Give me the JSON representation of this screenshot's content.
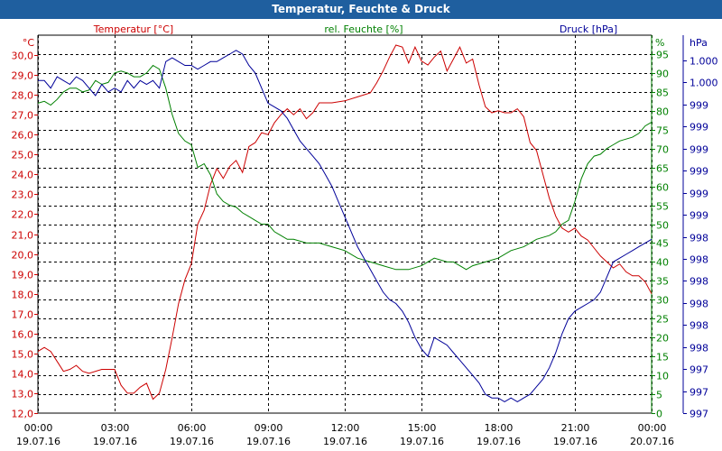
{
  "window": {
    "title": "Temperatur, Feuchte & Druck"
  },
  "colors": {
    "temperature": "#cc0000",
    "humidity": "#008000",
    "pressure": "#000099",
    "titlebar": "#1f5f9f",
    "grid": "#000000"
  },
  "chart_data": {
    "type": "line",
    "grid": true,
    "x_ticks": [
      {
        "time": "00:00",
        "date": "19.07.16"
      },
      {
        "time": "03:00",
        "date": "19.07.16"
      },
      {
        "time": "06:00",
        "date": "19.07.16"
      },
      {
        "time": "09:00",
        "date": "19.07.16"
      },
      {
        "time": "12:00",
        "date": "19.07.16"
      },
      {
        "time": "15:00",
        "date": "19.07.16"
      },
      {
        "time": "18:00",
        "date": "19.07.16"
      },
      {
        "time": "21:00",
        "date": "19.07.16"
      },
      {
        "time": "00:00",
        "date": "20.07.16"
      }
    ],
    "xlim_hours": [
      0,
      24
    ],
    "axes": {
      "temperature": {
        "label": "Temperatur [°C]",
        "unit": "°C",
        "ylim": [
          12.0,
          31.0
        ],
        "ticks": [
          "12,0",
          "13,0",
          "14,0",
          "15,0",
          "16,0",
          "17,0",
          "18,0",
          "19,0",
          "20,0",
          "21,0",
          "22,0",
          "23,0",
          "24,0",
          "25,0",
          "26,0",
          "27,0",
          "28,0",
          "29,0",
          "30,0"
        ]
      },
      "humidity": {
        "label": "rel. Feuchte [%]",
        "unit": "%",
        "ylim": [
          0,
          100
        ],
        "ticks": [
          "0",
          "5",
          "10",
          "15",
          "20",
          "25",
          "30",
          "35",
          "40",
          "45",
          "50",
          "55",
          "60",
          "65",
          "70",
          "75",
          "80",
          "85",
          "90",
          "95"
        ]
      },
      "pressure": {
        "label": "Druck [hPa]",
        "unit": "hPa",
        "ticks": [
          "997",
          "997",
          "997",
          "998",
          "998",
          "998",
          "998",
          "998",
          "998",
          "999",
          "999",
          "999",
          "999",
          "999",
          "999",
          "1.000",
          "1.000"
        ]
      }
    },
    "series": [
      {
        "name": "Temperatur [°C]",
        "axis": "temperature",
        "points": [
          [
            0,
            15.1
          ],
          [
            0.25,
            15.3
          ],
          [
            0.5,
            15.1
          ],
          [
            0.75,
            14.6
          ],
          [
            1,
            14.1
          ],
          [
            1.25,
            14.2
          ],
          [
            1.5,
            14.4
          ],
          [
            1.75,
            14.1
          ],
          [
            2,
            14.0
          ],
          [
            2.5,
            14.2
          ],
          [
            3,
            14.2
          ],
          [
            3.25,
            13.4
          ],
          [
            3.5,
            13.0
          ],
          [
            3.75,
            13.0
          ],
          [
            4,
            13.3
          ],
          [
            4.25,
            13.5
          ],
          [
            4.5,
            12.7
          ],
          [
            4.75,
            13.0
          ],
          [
            5,
            14.2
          ],
          [
            5.25,
            15.8
          ],
          [
            5.5,
            17.5
          ],
          [
            5.75,
            18.7
          ],
          [
            6,
            19.5
          ],
          [
            6.25,
            21.5
          ],
          [
            6.5,
            22.2
          ],
          [
            6.75,
            23.5
          ],
          [
            7,
            24.3
          ],
          [
            7.25,
            23.8
          ],
          [
            7.5,
            24.4
          ],
          [
            7.75,
            24.7
          ],
          [
            8,
            24.1
          ],
          [
            8.25,
            25.4
          ],
          [
            8.5,
            25.6
          ],
          [
            8.75,
            26.1
          ],
          [
            9,
            26.0
          ],
          [
            9.25,
            26.6
          ],
          [
            9.5,
            27.0
          ],
          [
            9.75,
            27.3
          ],
          [
            10,
            27.0
          ],
          [
            10.25,
            27.3
          ],
          [
            10.5,
            26.8
          ],
          [
            10.75,
            27.1
          ],
          [
            11,
            27.6
          ],
          [
            11.5,
            27.6
          ],
          [
            12,
            27.7
          ],
          [
            12.5,
            27.9
          ],
          [
            13,
            28.1
          ],
          [
            13.25,
            28.6
          ],
          [
            13.5,
            29.2
          ],
          [
            13.75,
            29.9
          ],
          [
            14,
            30.5
          ],
          [
            14.25,
            30.4
          ],
          [
            14.5,
            29.6
          ],
          [
            14.75,
            30.4
          ],
          [
            15,
            29.7
          ],
          [
            15.25,
            29.5
          ],
          [
            15.5,
            29.9
          ],
          [
            15.75,
            30.2
          ],
          [
            16,
            29.2
          ],
          [
            16.25,
            29.8
          ],
          [
            16.5,
            30.4
          ],
          [
            16.75,
            29.6
          ],
          [
            17,
            29.8
          ],
          [
            17.25,
            28.5
          ],
          [
            17.5,
            27.4
          ],
          [
            17.75,
            27.1
          ],
          [
            18,
            27.2
          ],
          [
            18.25,
            27.1
          ],
          [
            18.5,
            27.1
          ],
          [
            18.75,
            27.3
          ],
          [
            19,
            26.9
          ],
          [
            19.25,
            25.6
          ],
          [
            19.5,
            25.2
          ],
          [
            19.75,
            24.0
          ],
          [
            20,
            22.8
          ],
          [
            20.25,
            21.9
          ],
          [
            20.5,
            21.3
          ],
          [
            20.75,
            21.1
          ],
          [
            21,
            21.3
          ],
          [
            21.25,
            20.9
          ],
          [
            21.5,
            20.7
          ],
          [
            21.75,
            20.3
          ],
          [
            22,
            19.9
          ],
          [
            22.25,
            19.6
          ],
          [
            22.5,
            19.3
          ],
          [
            22.75,
            19.5
          ],
          [
            23,
            19.1
          ],
          [
            23.25,
            18.9
          ],
          [
            23.5,
            18.9
          ],
          [
            23.75,
            18.6
          ],
          [
            24,
            18.0
          ]
        ]
      },
      {
        "name": "rel. Feuchte [%]",
        "axis": "humidity",
        "points": [
          [
            0,
            82
          ],
          [
            0.25,
            82.5
          ],
          [
            0.5,
            81.5
          ],
          [
            0.75,
            83
          ],
          [
            1,
            85
          ],
          [
            1.25,
            86
          ],
          [
            1.5,
            86
          ],
          [
            1.75,
            85
          ],
          [
            2,
            85.5
          ],
          [
            2.25,
            88
          ],
          [
            2.5,
            87
          ],
          [
            2.75,
            87.5
          ],
          [
            3,
            90
          ],
          [
            3.25,
            90.5
          ],
          [
            3.5,
            90
          ],
          [
            3.75,
            89
          ],
          [
            4,
            89
          ],
          [
            4.25,
            90
          ],
          [
            4.5,
            92
          ],
          [
            4.75,
            91
          ],
          [
            5,
            86
          ],
          [
            5.25,
            79
          ],
          [
            5.5,
            74
          ],
          [
            5.75,
            72
          ],
          [
            6,
            71
          ],
          [
            6.25,
            65
          ],
          [
            6.5,
            66
          ],
          [
            6.75,
            63
          ],
          [
            7,
            58
          ],
          [
            7.25,
            56
          ],
          [
            7.5,
            55
          ],
          [
            7.75,
            54.5
          ],
          [
            8,
            53
          ],
          [
            8.25,
            52
          ],
          [
            8.5,
            51
          ],
          [
            8.75,
            50
          ],
          [
            9,
            50
          ],
          [
            9.25,
            48
          ],
          [
            9.5,
            47
          ],
          [
            9.75,
            46
          ],
          [
            10,
            46
          ],
          [
            10.5,
            45
          ],
          [
            11,
            45
          ],
          [
            11.5,
            44
          ],
          [
            12,
            43
          ],
          [
            12.5,
            41
          ],
          [
            13,
            40
          ],
          [
            13.5,
            39
          ],
          [
            14,
            38
          ],
          [
            14.5,
            38
          ],
          [
            15,
            39
          ],
          [
            15.5,
            41
          ],
          [
            16,
            40
          ],
          [
            16.25,
            40
          ],
          [
            16.5,
            39
          ],
          [
            16.75,
            38
          ],
          [
            17,
            39
          ],
          [
            17.5,
            40
          ],
          [
            18,
            41
          ],
          [
            18.5,
            43
          ],
          [
            19,
            44
          ],
          [
            19.5,
            46
          ],
          [
            20,
            47
          ],
          [
            20.25,
            48
          ],
          [
            20.5,
            50
          ],
          [
            20.75,
            51
          ],
          [
            21,
            56
          ],
          [
            21.25,
            62
          ],
          [
            21.5,
            66
          ],
          [
            21.75,
            68
          ],
          [
            22,
            68.5
          ],
          [
            22.25,
            70
          ],
          [
            22.5,
            71
          ],
          [
            22.75,
            72
          ],
          [
            23,
            72.5
          ],
          [
            23.25,
            73
          ],
          [
            23.5,
            74
          ],
          [
            23.75,
            76
          ],
          [
            24,
            77
          ]
        ]
      },
      {
        "name": "Druck [hPa]",
        "axis": "pressure",
        "points": [
          [
            0,
            88
          ],
          [
            0.25,
            88
          ],
          [
            0.5,
            86
          ],
          [
            0.75,
            89
          ],
          [
            1,
            88
          ],
          [
            1.25,
            87
          ],
          [
            1.5,
            89
          ],
          [
            1.75,
            88
          ],
          [
            2,
            86
          ],
          [
            2.25,
            84
          ],
          [
            2.5,
            87
          ],
          [
            2.75,
            85
          ],
          [
            3,
            86
          ],
          [
            3.25,
            85
          ],
          [
            3.5,
            88
          ],
          [
            3.75,
            86
          ],
          [
            4,
            88
          ],
          [
            4.25,
            87
          ],
          [
            4.5,
            88
          ],
          [
            4.75,
            86
          ],
          [
            5,
            93
          ],
          [
            5.25,
            94
          ],
          [
            5.5,
            93
          ],
          [
            5.75,
            92
          ],
          [
            6,
            92
          ],
          [
            6.25,
            91
          ],
          [
            6.5,
            92
          ],
          [
            6.75,
            93
          ],
          [
            7,
            93
          ],
          [
            7.25,
            94
          ],
          [
            7.5,
            95
          ],
          [
            7.75,
            96
          ],
          [
            8,
            95
          ],
          [
            8.25,
            92
          ],
          [
            8.5,
            90
          ],
          [
            8.75,
            86
          ],
          [
            9,
            82
          ],
          [
            9.25,
            81
          ],
          [
            9.5,
            80
          ],
          [
            9.75,
            78
          ],
          [
            10,
            75
          ],
          [
            10.25,
            72
          ],
          [
            10.5,
            70
          ],
          [
            10.75,
            68
          ],
          [
            11,
            66
          ],
          [
            11.25,
            63
          ],
          [
            11.5,
            60
          ],
          [
            11.75,
            56
          ],
          [
            12,
            52
          ],
          [
            12.25,
            48
          ],
          [
            12.5,
            44
          ],
          [
            12.75,
            41
          ],
          [
            13,
            38
          ],
          [
            13.25,
            35
          ],
          [
            13.5,
            32
          ],
          [
            13.75,
            30
          ],
          [
            14,
            29
          ],
          [
            14.25,
            27
          ],
          [
            14.5,
            24
          ],
          [
            14.75,
            20
          ],
          [
            15,
            17
          ],
          [
            15.25,
            15
          ],
          [
            15.5,
            20
          ],
          [
            15.75,
            19
          ],
          [
            16,
            18
          ],
          [
            16.25,
            16
          ],
          [
            16.5,
            14
          ],
          [
            16.75,
            12
          ],
          [
            17,
            10
          ],
          [
            17.25,
            8
          ],
          [
            17.5,
            5
          ],
          [
            17.75,
            4
          ],
          [
            18,
            4
          ],
          [
            18.25,
            3
          ],
          [
            18.5,
            4
          ],
          [
            18.75,
            3
          ],
          [
            19,
            4
          ],
          [
            19.25,
            5
          ],
          [
            19.5,
            7
          ],
          [
            19.75,
            9
          ],
          [
            20,
            12
          ],
          [
            20.25,
            16
          ],
          [
            20.5,
            21
          ],
          [
            20.75,
            25
          ],
          [
            21,
            27
          ],
          [
            21.25,
            28
          ],
          [
            21.5,
            29
          ],
          [
            21.75,
            30
          ],
          [
            22,
            32
          ],
          [
            22.25,
            36
          ],
          [
            22.5,
            40
          ],
          [
            22.75,
            41
          ],
          [
            23,
            42
          ],
          [
            23.25,
            43
          ],
          [
            23.5,
            44
          ],
          [
            23.75,
            45
          ],
          [
            24,
            46
          ]
        ]
      }
    ]
  }
}
